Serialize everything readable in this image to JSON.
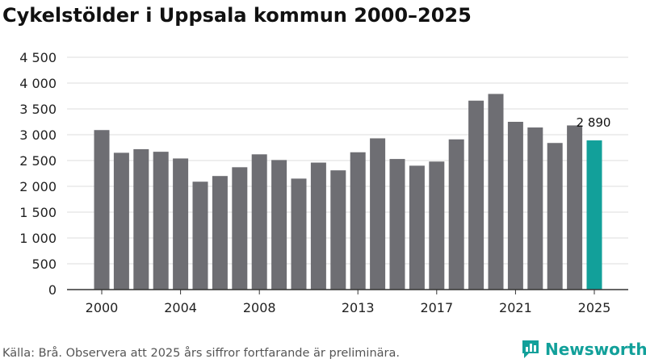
{
  "chart_data": {
    "type": "bar",
    "title": "Cykelstölder i Uppsala kommun 2000–2025",
    "categories": [
      "2000",
      "2001",
      "2002",
      "2003",
      "2004",
      "2005",
      "2006",
      "2007",
      "2008",
      "2009",
      "2010",
      "2011",
      "2012",
      "2013",
      "2014",
      "2015",
      "2016",
      "2017",
      "2018",
      "2019",
      "2020",
      "2021",
      "2022",
      "2023",
      "2024",
      "2025"
    ],
    "values": [
      3090,
      2650,
      2720,
      2670,
      2540,
      2090,
      2200,
      2370,
      2620,
      2510,
      2150,
      2460,
      2310,
      2660,
      2930,
      2530,
      2400,
      2480,
      2910,
      3660,
      3790,
      3250,
      3140,
      2840,
      3180,
      2890
    ],
    "highlight_index": 25,
    "highlight_label": "2 890",
    "x_tick_labels": [
      "2000",
      "2004",
      "2008",
      "2013",
      "2017",
      "2021",
      "2025"
    ],
    "y_tick_labels": [
      "0",
      "500",
      "1 000",
      "1 500",
      "2 000",
      "2 500",
      "3 000",
      "3 500",
      "4 000",
      "4 500"
    ],
    "y_ticks": [
      0,
      500,
      1000,
      1500,
      2000,
      2500,
      3000,
      3500,
      4000,
      4500
    ],
    "ylim": [
      0,
      4500
    ],
    "grid": "horizontal",
    "xlabel": "",
    "ylabel": "",
    "colors": {
      "bar": "#6E6E73",
      "highlight": "#12A09A",
      "grid": "#DDDDDD",
      "axis": "#333333"
    }
  },
  "source": "Källa: Brå. Observera att 2025 års siffror fortfarande är preliminära.",
  "brand": {
    "name": "Newsworthy",
    "icon": "bar-chart-logo-icon",
    "color": "#12A09A"
  }
}
